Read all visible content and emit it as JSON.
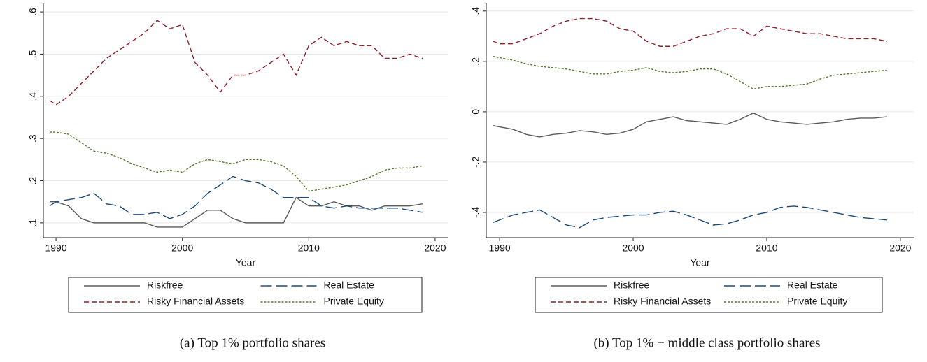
{
  "chart_data": [
    {
      "type": "line",
      "caption": "(a) Top 1% portfolio shares",
      "x_label": "Year",
      "grid": true,
      "legend": "bottom",
      "x": [
        1989.5,
        1990,
        1991,
        1992,
        1993,
        1994,
        1995,
        1996,
        1997,
        1998,
        1999,
        2000,
        2001,
        2002,
        2003,
        2004,
        2005,
        2006,
        2007,
        2008,
        2009,
        2010,
        2011,
        2012,
        2013,
        2014,
        2015,
        2016,
        2017,
        2018,
        2019
      ],
      "xlim": [
        1989,
        2021
      ],
      "xticks": [
        1990,
        2000,
        2010,
        2020
      ],
      "ylim": [
        0.065,
        0.62
      ],
      "yticks": [
        {
          "value": 0.1,
          "label": ".1"
        },
        {
          "value": 0.2,
          "label": ".2"
        },
        {
          "value": 0.3,
          "label": ".3"
        },
        {
          "value": 0.4,
          "label": ".4"
        },
        {
          "value": 0.5,
          "label": ".5"
        },
        {
          "value": 0.6,
          "label": ".6"
        }
      ],
      "series": [
        {
          "name": "Riskfree",
          "color": "#5a5a5a",
          "style": "solid",
          "values": [
            0.15,
            0.15,
            0.14,
            0.11,
            0.1,
            0.1,
            0.1,
            0.1,
            0.1,
            0.09,
            0.09,
            0.09,
            0.11,
            0.13,
            0.13,
            0.11,
            0.1,
            0.1,
            0.1,
            0.1,
            0.16,
            0.14,
            0.14,
            0.15,
            0.14,
            0.14,
            0.13,
            0.14,
            0.14,
            0.14,
            0.145
          ]
        },
        {
          "name": "Real Estate",
          "color": "#1c4a78",
          "style": "longdash",
          "values": [
            0.14,
            0.15,
            0.155,
            0.16,
            0.17,
            0.145,
            0.14,
            0.12,
            0.12,
            0.125,
            0.11,
            0.12,
            0.14,
            0.17,
            0.19,
            0.21,
            0.2,
            0.195,
            0.18,
            0.16,
            0.16,
            0.16,
            0.14,
            0.135,
            0.14,
            0.135,
            0.135,
            0.135,
            0.135,
            0.13,
            0.125
          ]
        },
        {
          "name": "Risky Financial Assets",
          "color": "#8e2027",
          "style": "dash",
          "values": [
            0.39,
            0.38,
            0.4,
            0.43,
            0.46,
            0.49,
            0.51,
            0.53,
            0.55,
            0.58,
            0.56,
            0.57,
            0.48,
            0.45,
            0.41,
            0.45,
            0.45,
            0.46,
            0.48,
            0.5,
            0.45,
            0.52,
            0.54,
            0.52,
            0.53,
            0.52,
            0.52,
            0.49,
            0.49,
            0.5,
            0.49
          ]
        },
        {
          "name": "Private Equity",
          "color": "#56792e",
          "style": "dot",
          "values": [
            0.315,
            0.315,
            0.31,
            0.29,
            0.27,
            0.265,
            0.255,
            0.24,
            0.23,
            0.22,
            0.225,
            0.22,
            0.24,
            0.25,
            0.245,
            0.24,
            0.25,
            0.25,
            0.245,
            0.235,
            0.21,
            0.175,
            0.18,
            0.185,
            0.19,
            0.2,
            0.21,
            0.225,
            0.23,
            0.23,
            0.235
          ]
        }
      ]
    },
    {
      "type": "line",
      "caption": "(b) Top 1% − middle class portfolio shares",
      "x_label": "Year",
      "grid": true,
      "legend": "bottom",
      "x": [
        1989.5,
        1990,
        1991,
        1992,
        1993,
        1994,
        1995,
        1996,
        1997,
        1998,
        1999,
        2000,
        2001,
        2002,
        2003,
        2004,
        2005,
        2006,
        2007,
        2008,
        2009,
        2010,
        2011,
        2012,
        2013,
        2014,
        2015,
        2016,
        2017,
        2018,
        2019
      ],
      "xlim": [
        1989,
        2021
      ],
      "xticks": [
        1990,
        2000,
        2010,
        2020
      ],
      "ylim": [
        -0.5,
        0.43
      ],
      "yticks": [
        {
          "value": -0.4,
          "label": "-.4"
        },
        {
          "value": -0.2,
          "label": "-.2"
        },
        0,
        {
          "value": 0.2,
          "label": ".2"
        },
        {
          "value": 0.4,
          "label": ".4"
        }
      ],
      "series": [
        {
          "name": "Riskfree",
          "color": "#5a5a5a",
          "style": "solid",
          "values": [
            -0.055,
            -0.06,
            -0.07,
            -0.09,
            -0.1,
            -0.09,
            -0.085,
            -0.075,
            -0.08,
            -0.09,
            -0.085,
            -0.07,
            -0.04,
            -0.03,
            -0.02,
            -0.035,
            -0.04,
            -0.045,
            -0.05,
            -0.03,
            -0.005,
            -0.03,
            -0.04,
            -0.045,
            -0.05,
            -0.045,
            -0.04,
            -0.03,
            -0.025,
            -0.025,
            -0.02
          ]
        },
        {
          "name": "Real Estate",
          "color": "#1c4a78",
          "style": "longdash",
          "values": [
            -0.44,
            -0.43,
            -0.41,
            -0.4,
            -0.39,
            -0.42,
            -0.45,
            -0.46,
            -0.43,
            -0.42,
            -0.415,
            -0.41,
            -0.41,
            -0.4,
            -0.395,
            -0.41,
            -0.43,
            -0.45,
            -0.445,
            -0.43,
            -0.41,
            -0.4,
            -0.38,
            -0.375,
            -0.38,
            -0.39,
            -0.4,
            -0.41,
            -0.42,
            -0.425,
            -0.43
          ]
        },
        {
          "name": "Risky Financial Assets",
          "color": "#8e2027",
          "style": "dash",
          "values": [
            0.28,
            0.27,
            0.27,
            0.29,
            0.31,
            0.34,
            0.36,
            0.37,
            0.37,
            0.36,
            0.33,
            0.32,
            0.28,
            0.26,
            0.26,
            0.28,
            0.3,
            0.31,
            0.33,
            0.33,
            0.3,
            0.34,
            0.33,
            0.32,
            0.31,
            0.31,
            0.3,
            0.29,
            0.29,
            0.29,
            0.28
          ]
        },
        {
          "name": "Private Equity",
          "color": "#56792e",
          "style": "dot",
          "values": [
            0.22,
            0.215,
            0.205,
            0.19,
            0.18,
            0.175,
            0.17,
            0.16,
            0.15,
            0.15,
            0.16,
            0.165,
            0.175,
            0.16,
            0.155,
            0.16,
            0.17,
            0.17,
            0.15,
            0.12,
            0.09,
            0.1,
            0.1,
            0.105,
            0.11,
            0.13,
            0.145,
            0.15,
            0.155,
            0.16,
            0.165
          ]
        }
      ]
    }
  ]
}
